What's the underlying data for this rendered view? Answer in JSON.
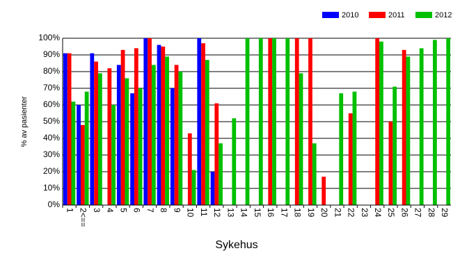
{
  "chart_data": {
    "type": "bar",
    "x_label": "Sykehus",
    "y_label": "% av pasienter",
    "categories": [
      "1",
      "2<==",
      "3",
      "4",
      "5",
      "6",
      "7",
      "8",
      "9",
      "10",
      "11",
      "12",
      "13",
      "14",
      "15",
      "16",
      "17",
      "18",
      "19",
      "20",
      "21",
      "22",
      "23",
      "24",
      "25",
      "26",
      "27",
      "28",
      "29"
    ],
    "series": [
      {
        "name": "2010",
        "color": "#0000ff",
        "values": [
          91,
          60,
          91,
          null,
          84,
          67,
          100,
          96,
          70,
          null,
          100,
          20,
          null,
          null,
          null,
          null,
          null,
          null,
          null,
          null,
          null,
          null,
          null,
          null,
          null,
          null,
          null,
          null,
          null
        ]
      },
      {
        "name": "2011",
        "color": "#ff0000",
        "values": [
          91,
          48,
          86,
          82,
          93,
          94,
          100,
          95,
          84,
          43,
          97,
          61,
          null,
          null,
          null,
          100,
          null,
          100,
          100,
          17,
          null,
          55,
          null,
          100,
          50,
          93,
          null,
          null,
          null
        ]
      },
      {
        "name": "2012",
        "color": "#00c000",
        "values": [
          62,
          68,
          79,
          60,
          76,
          70,
          84,
          89,
          80,
          21,
          87,
          37,
          52,
          100,
          100,
          100,
          100,
          79,
          37,
          null,
          67,
          68,
          null,
          98,
          71,
          89,
          94,
          99,
          100
        ]
      }
    ],
    "ylim": [
      0,
      100
    ],
    "yticks": [
      {
        "value": 0,
        "label": "0%"
      },
      {
        "value": 10,
        "label": "10%"
      },
      {
        "value": 20,
        "label": "20%"
      },
      {
        "value": 30,
        "label": "30%"
      },
      {
        "value": 40,
        "label": "40%"
      },
      {
        "value": 50,
        "label": "50%"
      },
      {
        "value": 60,
        "label": "60%"
      },
      {
        "value": 70,
        "label": "70%"
      },
      {
        "value": 80,
        "label": "80%"
      },
      {
        "value": 90,
        "label": "90%"
      },
      {
        "value": 100,
        "label": "100%"
      }
    ],
    "grid": true,
    "legend": "top-right"
  }
}
